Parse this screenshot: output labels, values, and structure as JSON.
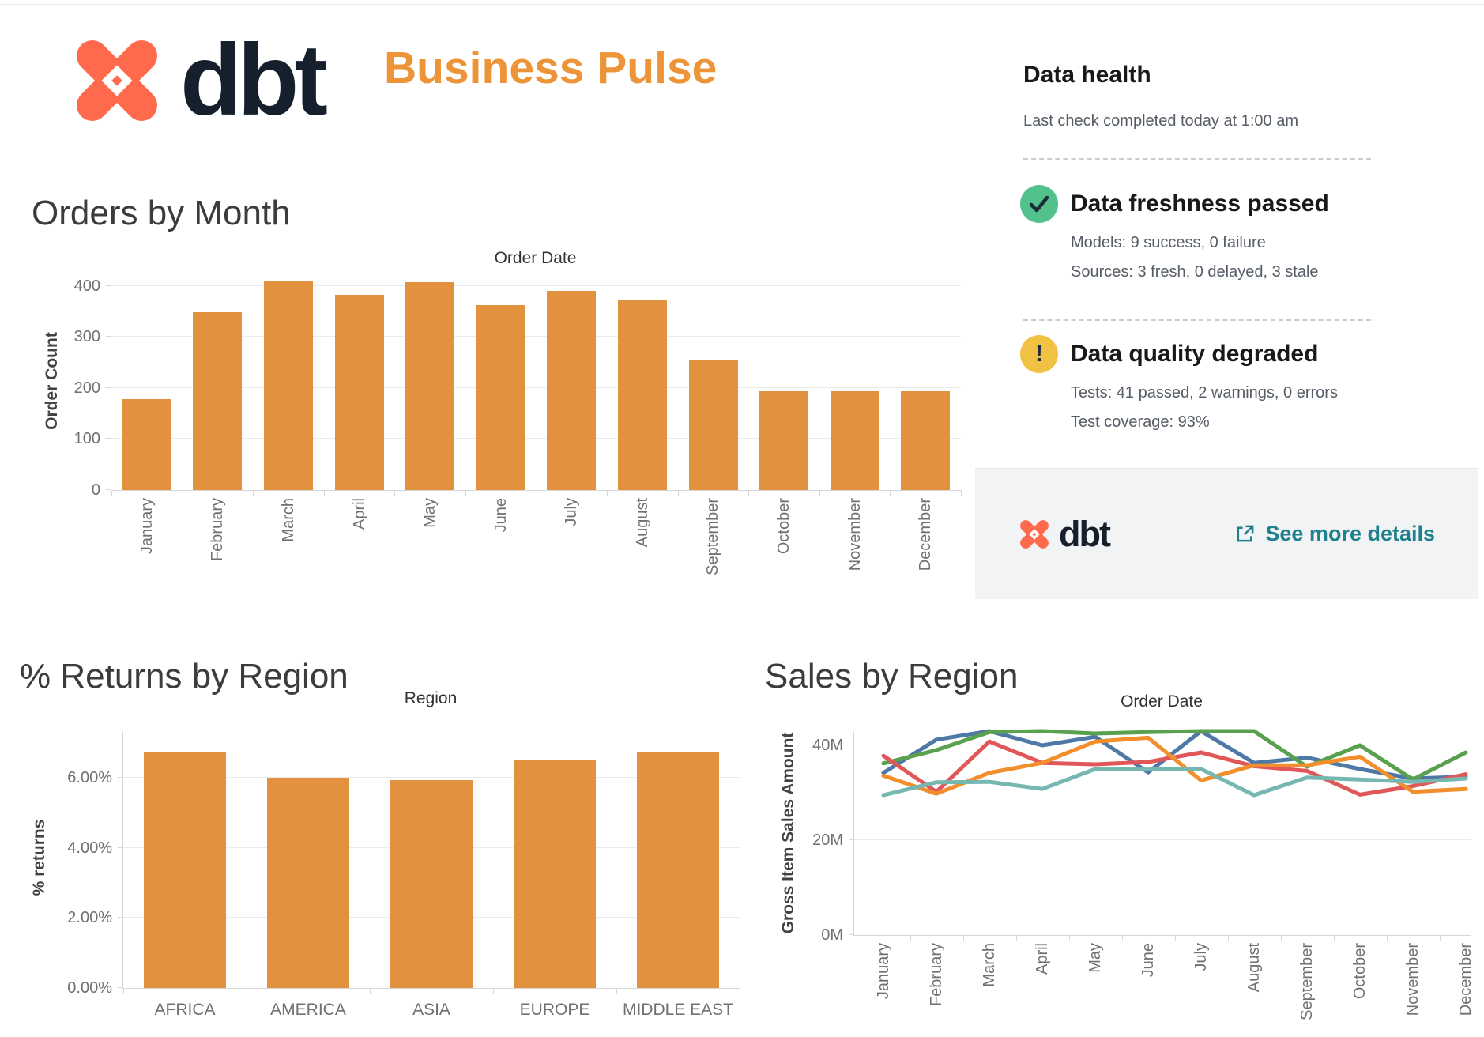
{
  "header": {
    "brand": "dbt",
    "title": "Business Pulse"
  },
  "colors": {
    "bar_orange": "#E2913F",
    "title_orange": "#ED9438",
    "brand_coral": "#FF6A4D",
    "brand_dark": "#16202C",
    "link_teal": "#1F808D",
    "status_green": "#52C18C",
    "status_yellow": "#F0C143"
  },
  "data_health": {
    "title": "Data health",
    "subtitle": "Last check completed today at 1:00 am",
    "items": [
      {
        "heading": "Data freshness passed",
        "icon": "check-icon",
        "icon_color": "#52C18C",
        "lines": [
          "Models: 9 success, 0 failure",
          "Sources: 3 fresh, 0 delayed, 3 stale"
        ]
      },
      {
        "heading": "Data quality degraded",
        "icon": "exclamation-icon",
        "icon_color": "#F0C143",
        "lines": [
          "Tests: 41 passed, 2 warnings, 0 errors",
          "Test coverage: 93%"
        ]
      }
    ],
    "footer": {
      "brand": "dbt",
      "link_label": "See more details"
    }
  },
  "chart_data": [
    {
      "type": "bar",
      "name": "orders-by-month",
      "title": "Orders by Month",
      "xlabel": "Order Date",
      "ylabel": "Order Count",
      "categories": [
        "January",
        "February",
        "March",
        "April",
        "May",
        "June",
        "July",
        "August",
        "September",
        "October",
        "November",
        "December"
      ],
      "values": [
        178,
        348,
        410,
        383,
        407,
        362,
        391,
        372,
        254,
        193,
        193,
        193
      ],
      "yticks": [
        {
          "value": 0,
          "label": "0"
        },
        {
          "value": 100,
          "label": "100"
        },
        {
          "value": 200,
          "label": "200"
        },
        {
          "value": 300,
          "label": "300"
        },
        {
          "value": 400,
          "label": "400"
        }
      ],
      "ylim": [
        0,
        426
      ],
      "bar_color": "#E2913F",
      "grid": "horizontal",
      "legend": "none"
    },
    {
      "type": "bar",
      "name": "returns-by-region",
      "title": "% Returns by Region",
      "xlabel": "Region",
      "ylabel": "% returns",
      "categories": [
        "AFRICA",
        "AMERICA",
        "ASIA",
        "EUROPE",
        "MIDDLE EAST"
      ],
      "values": [
        6.75,
        6.0,
        5.95,
        6.5,
        6.75
      ],
      "yticks": [
        {
          "value": 0,
          "label": "0.00%"
        },
        {
          "value": 2,
          "label": "2.00%"
        },
        {
          "value": 4,
          "label": "4.00%"
        },
        {
          "value": 6,
          "label": "6.00%"
        }
      ],
      "ylim": [
        0,
        7.34
      ],
      "bar_color": "#E2913F",
      "grid": "horizontal",
      "legend": "none"
    },
    {
      "type": "line",
      "name": "sales-by-region",
      "title": "Sales by Region",
      "xlabel": "Order Date",
      "ylabel": "Gross Item Sales Amount",
      "x": [
        "January",
        "February",
        "March",
        "April",
        "May",
        "June",
        "July",
        "August",
        "September",
        "October",
        "November",
        "December"
      ],
      "unit": "M",
      "series": [
        {
          "name": "blue",
          "color": "#4E79A7",
          "values": [
            34.2,
            41.2,
            43.0,
            40.0,
            41.8,
            34.3,
            43.0,
            36.3,
            37.4,
            35.0,
            33.0,
            33.4
          ]
        },
        {
          "name": "green",
          "color": "#59A14E",
          "values": [
            36.2,
            39.0,
            42.8,
            43.0,
            42.5,
            42.8,
            43.0,
            43.0,
            35.5,
            40.0,
            32.8,
            38.5
          ]
        },
        {
          "name": "red",
          "color": "#E15759",
          "values": [
            37.8,
            30.2,
            40.8,
            36.3,
            36.0,
            36.5,
            38.5,
            35.6,
            34.6,
            29.6,
            31.4,
            33.9
          ]
        },
        {
          "name": "orange",
          "color": "#F28E2B",
          "values": [
            33.6,
            29.8,
            34.2,
            36.3,
            40.8,
            41.6,
            32.6,
            35.8,
            35.8,
            37.6,
            30.2,
            30.8
          ]
        },
        {
          "name": "teal",
          "color": "#76B7B2",
          "values": [
            29.5,
            32.2,
            32.3,
            30.8,
            35.0,
            34.9,
            35.0,
            29.5,
            33.2,
            32.8,
            32.3,
            33.0
          ]
        }
      ],
      "yticks": [
        {
          "value": 0,
          "label": "0M"
        },
        {
          "value": 20,
          "label": "20M"
        },
        {
          "value": 40,
          "label": "40M"
        }
      ],
      "ylim": [
        0,
        43
      ],
      "grid": "horizontal",
      "legend": "none"
    }
  ]
}
